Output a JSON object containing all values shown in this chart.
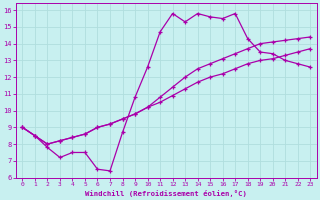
{
  "bg_color": "#c8f0f0",
  "grid_color": "#b0dede",
  "line_color": "#aa00aa",
  "xlabel": "Windchill (Refroidissement éolien,°C)",
  "xlim": [
    -0.5,
    23.5
  ],
  "ylim": [
    6,
    16.4
  ],
  "xticks": [
    0,
    1,
    2,
    3,
    4,
    5,
    6,
    7,
    8,
    9,
    10,
    11,
    12,
    13,
    14,
    15,
    16,
    17,
    18,
    19,
    20,
    21,
    22,
    23
  ],
  "yticks": [
    6,
    7,
    8,
    9,
    10,
    11,
    12,
    13,
    14,
    15,
    16
  ],
  "line1_x": [
    0,
    1,
    2,
    3,
    4,
    5,
    6,
    7,
    8,
    9,
    10,
    11,
    12,
    13,
    14,
    15,
    16,
    17,
    18,
    19,
    20,
    21,
    22,
    23
  ],
  "line1_y": [
    9.0,
    8.5,
    7.8,
    7.2,
    7.5,
    7.5,
    6.5,
    6.4,
    8.7,
    10.8,
    12.6,
    14.7,
    15.8,
    15.3,
    15.8,
    15.6,
    15.5,
    15.8,
    14.3,
    13.5,
    13.4,
    13.0,
    12.8,
    12.6
  ],
  "line2_x": [
    0,
    1,
    2,
    3,
    4,
    5,
    6,
    7,
    8,
    9,
    10,
    11,
    12,
    13,
    14,
    15,
    16,
    17,
    18,
    19,
    20,
    21,
    22,
    23
  ],
  "line2_y": [
    9.0,
    8.5,
    8.0,
    8.2,
    8.4,
    8.6,
    9.0,
    9.2,
    9.5,
    9.8,
    10.2,
    10.8,
    11.4,
    12.0,
    12.5,
    12.8,
    13.1,
    13.4,
    13.7,
    14.0,
    14.1,
    14.2,
    14.3,
    14.4
  ],
  "line3_x": [
    0,
    1,
    2,
    3,
    4,
    5,
    6,
    7,
    8,
    9,
    10,
    11,
    12,
    13,
    14,
    15,
    16,
    17,
    18,
    19,
    20,
    21,
    22,
    23
  ],
  "line3_y": [
    9.0,
    8.5,
    8.0,
    8.2,
    8.4,
    8.6,
    9.0,
    9.2,
    9.5,
    9.8,
    10.2,
    10.5,
    10.9,
    11.3,
    11.7,
    12.0,
    12.2,
    12.5,
    12.8,
    13.0,
    13.1,
    13.3,
    13.5,
    13.7
  ],
  "marker": "+",
  "markersize": 3.5,
  "linewidth": 0.9
}
